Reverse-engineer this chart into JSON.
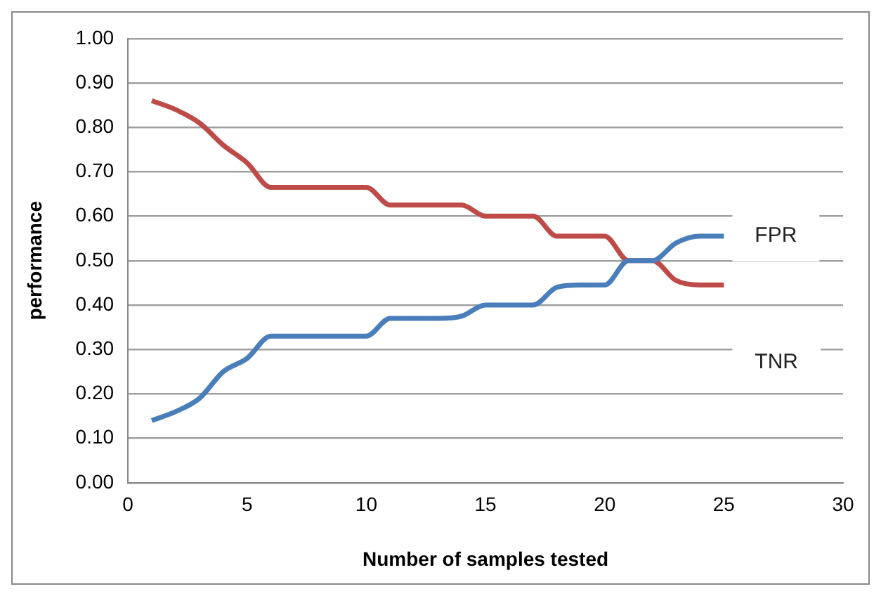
{
  "chart_data": {
    "type": "line",
    "xlabel": "Number of samples tested",
    "ylabel": "performance",
    "x": [
      1,
      2,
      3,
      4,
      5,
      6,
      7,
      8,
      9,
      10,
      11,
      12,
      13,
      14,
      15,
      16,
      17,
      18,
      19,
      20,
      21,
      22,
      23,
      24,
      25
    ],
    "series": [
      {
        "name": "FPR",
        "color": "#4a7ebb",
        "values": [
          0.14,
          0.16,
          0.19,
          0.25,
          0.28,
          0.33,
          0.33,
          0.33,
          0.33,
          0.33,
          0.37,
          0.37,
          0.37,
          0.375,
          0.4,
          0.4,
          0.4,
          0.44,
          0.445,
          0.445,
          0.5,
          0.5,
          0.54,
          0.555,
          0.555
        ]
      },
      {
        "name": "TNR",
        "color": "#be4b48",
        "values": [
          0.86,
          0.84,
          0.81,
          0.76,
          0.72,
          0.665,
          0.665,
          0.665,
          0.665,
          0.665,
          0.625,
          0.625,
          0.625,
          0.625,
          0.6,
          0.6,
          0.6,
          0.555,
          0.555,
          0.555,
          0.5,
          0.5,
          0.455,
          0.445,
          0.445
        ]
      }
    ],
    "xlim": [
      0,
      30
    ],
    "xticks": [
      0,
      5,
      10,
      15,
      20,
      25,
      30
    ],
    "ylim": [
      0,
      1
    ],
    "yticks": [
      {
        "value": 0,
        "label": "0.00"
      },
      {
        "value": 0.1,
        "label": "0.10"
      },
      {
        "value": 0.2,
        "label": "0.20"
      },
      {
        "value": 0.3,
        "label": "0.30"
      },
      {
        "value": 0.4,
        "label": "0.40"
      },
      {
        "value": 0.5,
        "label": "0.50"
      },
      {
        "value": 0.6,
        "label": "0.60"
      },
      {
        "value": 0.7,
        "label": "0.70"
      },
      {
        "value": 0.8,
        "label": "0.80"
      },
      {
        "value": 0.9,
        "label": "0.90"
      },
      {
        "value": 1,
        "label": "1.00"
      }
    ],
    "grid": "y",
    "marker": "none",
    "line_style": "solid",
    "legend": false
  }
}
